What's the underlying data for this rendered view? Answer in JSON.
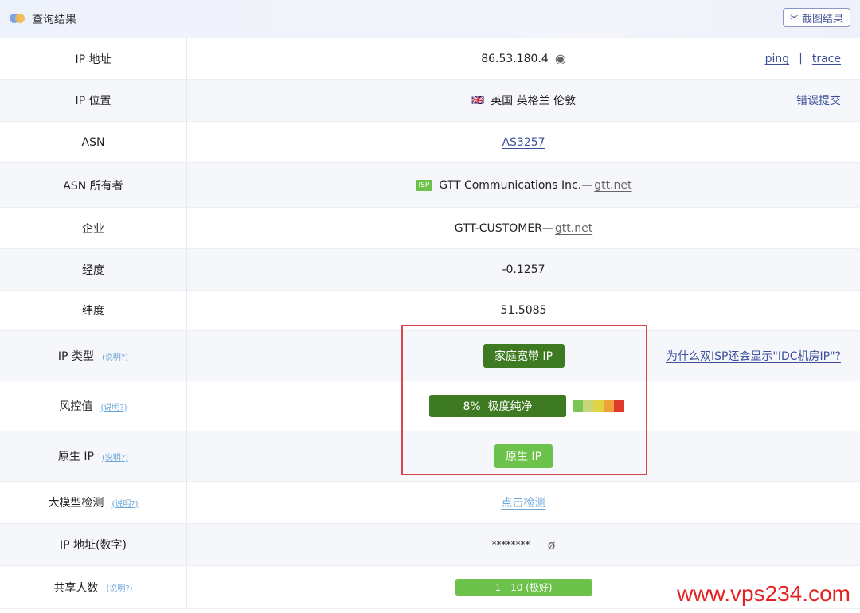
{
  "header": {
    "title": "查询结果",
    "screenshot_button": "截图结果"
  },
  "rows": [
    {
      "label": "IP 地址",
      "value": "86.53.180.4",
      "links": [
        "ping",
        "trace"
      ],
      "separator": "|"
    },
    {
      "label": "IP 位置",
      "value": "英国 英格兰 伦敦",
      "flag": "🇬🇧",
      "right_link": "错误提交"
    },
    {
      "label": "ASN",
      "value": "AS3257"
    },
    {
      "label": "ASN 所有者",
      "badge": "ISP",
      "value": "GTT Communications Inc.—",
      "link": "gtt.net"
    },
    {
      "label": "企业",
      "value": "GTT-CUSTOMER—",
      "link": "gtt.net"
    },
    {
      "label": "经度",
      "value": "-0.1257"
    },
    {
      "label": "纬度",
      "value": "51.5085"
    },
    {
      "label": "IP 类型",
      "help": "(说明?)",
      "value": "家庭宽带 IP",
      "right_link": "为什么双ISP还会显示\"IDC机房IP\"?"
    },
    {
      "label": "风控值",
      "help": "(说明?)",
      "value": "8%  极度纯净",
      "risk_percent": 8,
      "scale_colors": [
        "#7cc653",
        "#c8d67a",
        "#e0d446",
        "#f0a23a",
        "#e23a2a"
      ]
    },
    {
      "label": "原生 IP",
      "help": "(说明?)",
      "value": "原生 IP"
    },
    {
      "label": "大模型检测",
      "help": "(说明?)",
      "value": "点击检测"
    },
    {
      "label": "IP 地址(数字)",
      "value": "********"
    },
    {
      "label": "共享人数",
      "help": "(说明?)",
      "value": "1 - 10 (极好)"
    }
  ],
  "watermark": "www.vps234.com",
  "colors": {
    "dark_green": "#3d7a22",
    "light_green": "#6cc24a",
    "link": "#3d4f9c",
    "highlight_box": "#d9454f"
  }
}
